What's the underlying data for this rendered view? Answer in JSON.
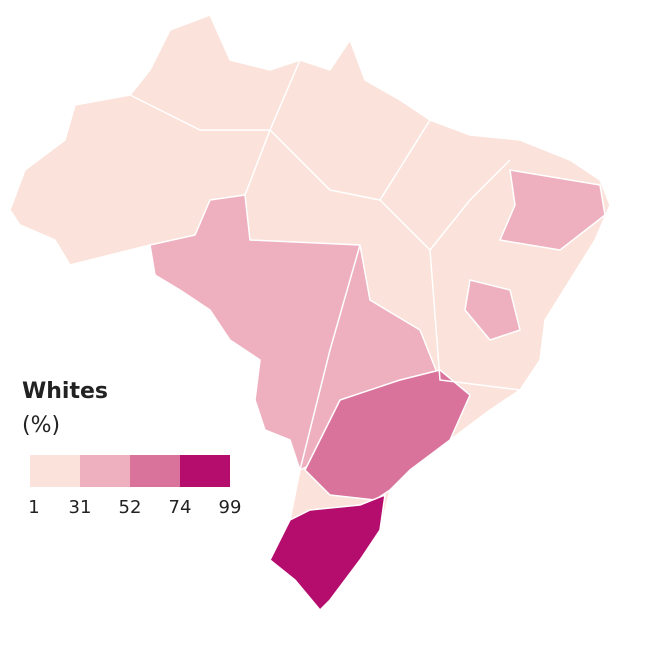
{
  "legend": {
    "title": "Whites",
    "unit": "(%)",
    "breaks": [
      1,
      31,
      52,
      74,
      99
    ],
    "colors": [
      "#fbe2da",
      "#eeb0bf",
      "#d9739b",
      "#b50d6d"
    ]
  }
}
